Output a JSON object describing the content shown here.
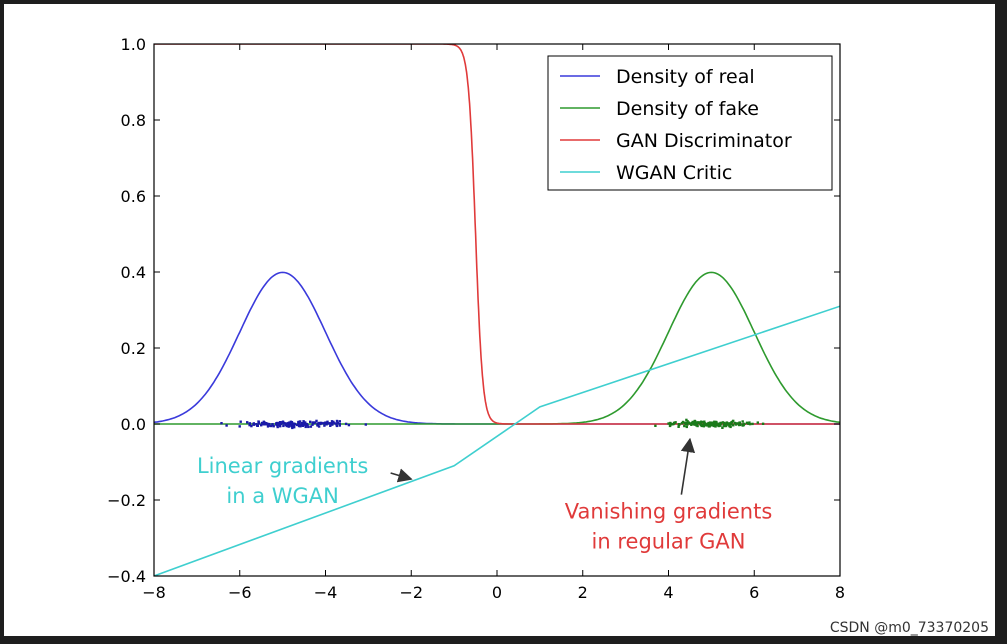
{
  "chart_data": {
    "type": "line",
    "title": "",
    "xlabel": "",
    "ylabel": "",
    "xlim": [
      -8,
      8
    ],
    "ylim": [
      -0.4,
      1.0
    ],
    "xticks": [
      -8,
      -6,
      -4,
      -2,
      0,
      2,
      4,
      6,
      8
    ],
    "xtick_labels": [
      "−8",
      "−6",
      "−4",
      "−2",
      "0",
      "2",
      "4",
      "6",
      "8"
    ],
    "yticks": [
      1.0,
      0.8,
      0.6,
      0.4,
      0.2,
      0.0,
      -0.2,
      -0.4
    ],
    "ytick_labels": [
      "1.0",
      "0.8",
      "0.6",
      "0.4",
      "0.2",
      "0.0",
      "−0.2",
      "−0.4"
    ],
    "grid": false,
    "legend_position": "top-right",
    "series": [
      {
        "name": "Density of real",
        "color": "#3a3adb",
        "kind": "gaussian",
        "mean": -5,
        "std": 1
      },
      {
        "name": "Density of fake",
        "color": "#2e9a2e",
        "kind": "gaussian",
        "mean": 5,
        "std": 1
      },
      {
        "name": "GAN Discriminator",
        "color": "#e03a3a",
        "kind": "sigmoid",
        "center": -0.5,
        "steepness": 12
      },
      {
        "name": "WGAN Critic",
        "color": "#3fcfcf",
        "kind": "polyline",
        "x": [
          -8,
          -1,
          1,
          8
        ],
        "y": [
          -0.4,
          -0.11,
          0.045,
          0.31
        ]
      }
    ],
    "scatter": [
      {
        "name": "real samples",
        "color": "#1a1aa8",
        "x_range": [
          -7,
          -2.2
        ],
        "y_jitter": 0.012
      },
      {
        "name": "fake samples",
        "color": "#1a7a1a",
        "x_range": [
          3,
          7
        ],
        "y_jitter": 0.012
      }
    ],
    "annotations": [
      {
        "text_lines": [
          "Linear gradients",
          "in a WGAN"
        ],
        "color": "#3fcfcf",
        "text_pos": [
          -5,
          -0.15
        ],
        "arrow_to": [
          -2,
          -0.145
        ]
      },
      {
        "text_lines": [
          "Vanishing gradients",
          "in regular GAN"
        ],
        "color": "#e03a3a",
        "text_pos": [
          4,
          -0.27
        ],
        "arrow_to": [
          4.5,
          -0.04
        ]
      }
    ]
  },
  "watermark": "CSDN @m0_73370205"
}
